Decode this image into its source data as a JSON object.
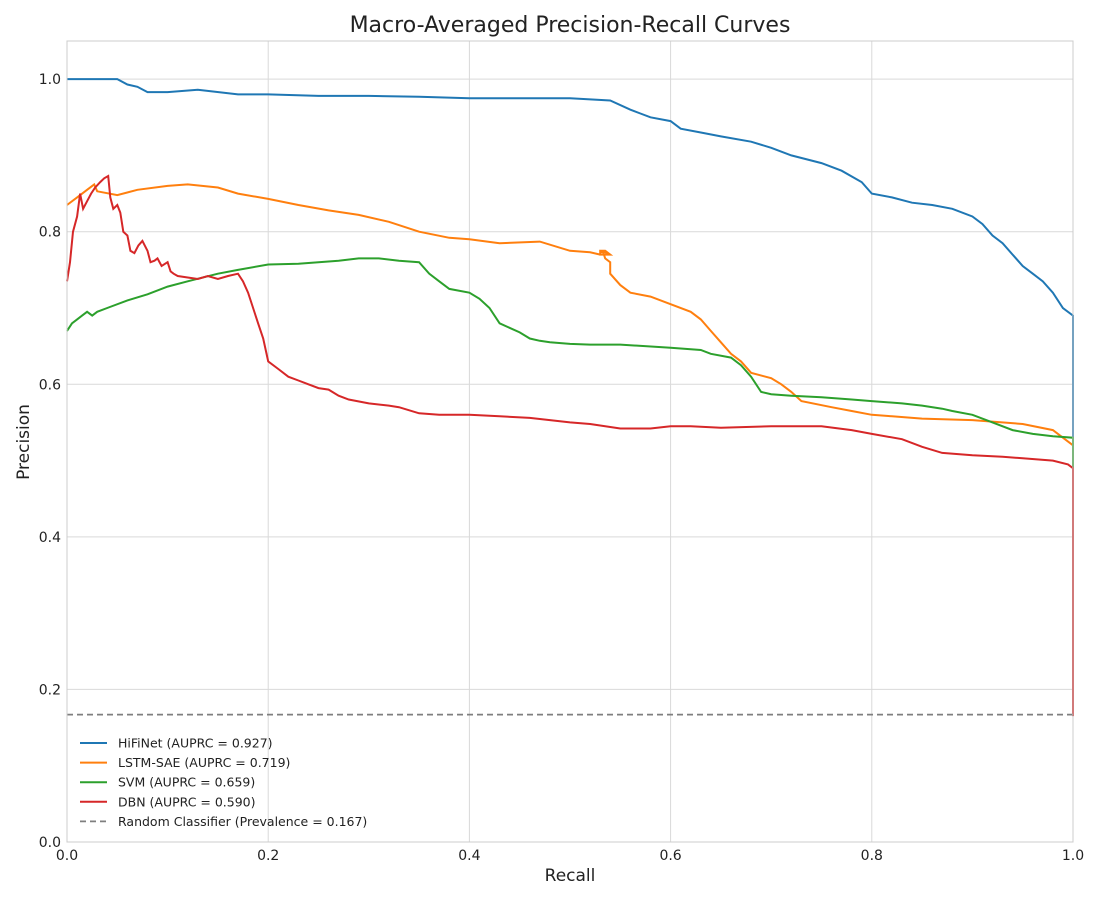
{
  "chart_data": {
    "type": "line",
    "title": "Macro-Averaged Precision-Recall Curves",
    "xlabel": "Recall",
    "ylabel": "Precision",
    "xlim": [
      0.0,
      1.0
    ],
    "ylim": [
      0.0,
      1.05
    ],
    "xticks": [
      0.0,
      0.2,
      0.4,
      0.6,
      0.8,
      1.0
    ],
    "xtick_labels": [
      "0.0",
      "0.2",
      "0.4",
      "0.6",
      "0.8",
      "1.0"
    ],
    "yticks": [
      0.0,
      0.2,
      0.4,
      0.6,
      0.8,
      1.0
    ],
    "ytick_labels": [
      "0.0",
      "0.2",
      "0.4",
      "0.6",
      "0.8",
      "1.0"
    ],
    "grid": true,
    "legend_position": "lower-left",
    "series": [
      {
        "name": "HiFiNet (AUPRC = 0.927)",
        "color": "#1f77b4",
        "style": "solid",
        "points": [
          [
            0,
            1.0
          ],
          [
            0.05,
            1.0
          ],
          [
            0.06,
            0.993
          ],
          [
            0.07,
            0.99
          ],
          [
            0.08,
            0.983
          ],
          [
            0.1,
            0.983
          ],
          [
            0.13,
            0.986
          ],
          [
            0.17,
            0.98
          ],
          [
            0.2,
            0.98
          ],
          [
            0.25,
            0.978
          ],
          [
            0.3,
            0.978
          ],
          [
            0.35,
            0.977
          ],
          [
            0.4,
            0.975
          ],
          [
            0.45,
            0.975
          ],
          [
            0.5,
            0.975
          ],
          [
            0.54,
            0.972
          ],
          [
            0.56,
            0.96
          ],
          [
            0.57,
            0.955
          ],
          [
            0.58,
            0.95
          ],
          [
            0.6,
            0.945
          ],
          [
            0.61,
            0.935
          ],
          [
            0.63,
            0.93
          ],
          [
            0.65,
            0.925
          ],
          [
            0.68,
            0.918
          ],
          [
            0.7,
            0.91
          ],
          [
            0.72,
            0.9
          ],
          [
            0.75,
            0.89
          ],
          [
            0.77,
            0.88
          ],
          [
            0.79,
            0.865
          ],
          [
            0.8,
            0.85
          ],
          [
            0.82,
            0.845
          ],
          [
            0.84,
            0.838
          ],
          [
            0.86,
            0.835
          ],
          [
            0.88,
            0.83
          ],
          [
            0.9,
            0.82
          ],
          [
            0.91,
            0.81
          ],
          [
            0.92,
            0.795
          ],
          [
            0.93,
            0.785
          ],
          [
            0.94,
            0.77
          ],
          [
            0.95,
            0.755
          ],
          [
            0.96,
            0.745
          ],
          [
            0.97,
            0.735
          ],
          [
            0.98,
            0.72
          ],
          [
            0.99,
            0.7
          ],
          [
            1.0,
            0.69
          ],
          [
            1.0,
            0.52
          ]
        ]
      },
      {
        "name": "LSTM-SAE (AUPRC = 0.719)",
        "color": "#ff7f0e",
        "style": "solid",
        "points": [
          [
            0,
            0.835
          ],
          [
            0.01,
            0.845
          ],
          [
            0.02,
            0.855
          ],
          [
            0.027,
            0.862
          ],
          [
            0.03,
            0.853
          ],
          [
            0.05,
            0.848
          ],
          [
            0.07,
            0.855
          ],
          [
            0.1,
            0.86
          ],
          [
            0.12,
            0.862
          ],
          [
            0.15,
            0.858
          ],
          [
            0.17,
            0.85
          ],
          [
            0.2,
            0.843
          ],
          [
            0.23,
            0.835
          ],
          [
            0.26,
            0.828
          ],
          [
            0.29,
            0.822
          ],
          [
            0.32,
            0.813
          ],
          [
            0.35,
            0.8
          ],
          [
            0.38,
            0.792
          ],
          [
            0.4,
            0.79
          ],
          [
            0.43,
            0.785
          ],
          [
            0.47,
            0.787
          ],
          [
            0.5,
            0.775
          ],
          [
            0.52,
            0.773
          ],
          [
            0.53,
            0.77
          ],
          [
            0.54,
            0.77
          ],
          [
            0.535,
            0.775
          ],
          [
            0.53,
            0.775
          ],
          [
            0.53,
            0.773
          ],
          [
            0.535,
            0.773
          ],
          [
            0.54,
            0.77
          ],
          [
            0.535,
            0.77
          ],
          [
            0.53,
            0.77
          ],
          [
            0.53,
            0.773
          ],
          [
            0.533,
            0.773
          ],
          [
            0.535,
            0.765
          ],
          [
            0.54,
            0.76
          ],
          [
            0.54,
            0.745
          ],
          [
            0.55,
            0.73
          ],
          [
            0.56,
            0.72
          ],
          [
            0.58,
            0.715
          ],
          [
            0.6,
            0.705
          ],
          [
            0.62,
            0.695
          ],
          [
            0.63,
            0.685
          ],
          [
            0.64,
            0.67
          ],
          [
            0.65,
            0.655
          ],
          [
            0.66,
            0.64
          ],
          [
            0.67,
            0.63
          ],
          [
            0.68,
            0.615
          ],
          [
            0.7,
            0.608
          ],
          [
            0.71,
            0.6
          ],
          [
            0.72,
            0.59
          ],
          [
            0.73,
            0.578
          ],
          [
            0.76,
            0.57
          ],
          [
            0.78,
            0.565
          ],
          [
            0.8,
            0.56
          ],
          [
            0.82,
            0.558
          ],
          [
            0.85,
            0.555
          ],
          [
            0.9,
            0.553
          ],
          [
            0.95,
            0.548
          ],
          [
            0.98,
            0.54
          ],
          [
            0.99,
            0.53
          ],
          [
            1.0,
            0.52
          ]
        ]
      },
      {
        "name": "SVM (AUPRC = 0.659)",
        "color": "#2ca02c",
        "style": "solid",
        "points": [
          [
            0,
            0.67
          ],
          [
            0.005,
            0.68
          ],
          [
            0.01,
            0.685
          ],
          [
            0.015,
            0.69
          ],
          [
            0.02,
            0.695
          ],
          [
            0.025,
            0.69
          ],
          [
            0.03,
            0.695
          ],
          [
            0.04,
            0.7
          ],
          [
            0.06,
            0.71
          ],
          [
            0.08,
            0.718
          ],
          [
            0.1,
            0.728
          ],
          [
            0.12,
            0.735
          ],
          [
            0.15,
            0.745
          ],
          [
            0.17,
            0.75
          ],
          [
            0.2,
            0.757
          ],
          [
            0.23,
            0.758
          ],
          [
            0.25,
            0.76
          ],
          [
            0.27,
            0.762
          ],
          [
            0.29,
            0.765
          ],
          [
            0.31,
            0.765
          ],
          [
            0.33,
            0.762
          ],
          [
            0.35,
            0.76
          ],
          [
            0.36,
            0.745
          ],
          [
            0.37,
            0.735
          ],
          [
            0.38,
            0.725
          ],
          [
            0.4,
            0.72
          ],
          [
            0.41,
            0.712
          ],
          [
            0.42,
            0.7
          ],
          [
            0.43,
            0.68
          ],
          [
            0.45,
            0.668
          ],
          [
            0.46,
            0.66
          ],
          [
            0.47,
            0.657
          ],
          [
            0.48,
            0.655
          ],
          [
            0.5,
            0.653
          ],
          [
            0.52,
            0.652
          ],
          [
            0.55,
            0.652
          ],
          [
            0.6,
            0.648
          ],
          [
            0.63,
            0.645
          ],
          [
            0.64,
            0.64
          ],
          [
            0.66,
            0.635
          ],
          [
            0.67,
            0.625
          ],
          [
            0.68,
            0.61
          ],
          [
            0.69,
            0.59
          ],
          [
            0.7,
            0.587
          ],
          [
            0.72,
            0.585
          ],
          [
            0.75,
            0.583
          ],
          [
            0.78,
            0.58
          ],
          [
            0.8,
            0.578
          ],
          [
            0.83,
            0.575
          ],
          [
            0.85,
            0.572
          ],
          [
            0.87,
            0.568
          ],
          [
            0.88,
            0.565
          ],
          [
            0.9,
            0.56
          ],
          [
            0.92,
            0.55
          ],
          [
            0.94,
            0.54
          ],
          [
            0.96,
            0.535
          ],
          [
            0.98,
            0.532
          ],
          [
            1.0,
            0.53
          ],
          [
            1.0,
            0.46
          ]
        ]
      },
      {
        "name": "DBN (AUPRC = 0.590)",
        "color": "#d62728",
        "style": "solid",
        "points": [
          [
            0,
            0.735
          ],
          [
            0.003,
            0.76
          ],
          [
            0.006,
            0.8
          ],
          [
            0.01,
            0.82
          ],
          [
            0.013,
            0.85
          ],
          [
            0.016,
            0.83
          ],
          [
            0.02,
            0.84
          ],
          [
            0.024,
            0.85
          ],
          [
            0.028,
            0.858
          ],
          [
            0.033,
            0.865
          ],
          [
            0.037,
            0.87
          ],
          [
            0.041,
            0.873
          ],
          [
            0.043,
            0.845
          ],
          [
            0.046,
            0.83
          ],
          [
            0.05,
            0.835
          ],
          [
            0.053,
            0.825
          ],
          [
            0.056,
            0.8
          ],
          [
            0.06,
            0.795
          ],
          [
            0.063,
            0.775
          ],
          [
            0.067,
            0.772
          ],
          [
            0.071,
            0.782
          ],
          [
            0.075,
            0.788
          ],
          [
            0.08,
            0.775
          ],
          [
            0.083,
            0.76
          ],
          [
            0.087,
            0.762
          ],
          [
            0.09,
            0.765
          ],
          [
            0.094,
            0.755
          ],
          [
            0.1,
            0.76
          ],
          [
            0.103,
            0.748
          ],
          [
            0.106,
            0.745
          ],
          [
            0.11,
            0.742
          ],
          [
            0.12,
            0.74
          ],
          [
            0.13,
            0.738
          ],
          [
            0.14,
            0.742
          ],
          [
            0.15,
            0.738
          ],
          [
            0.16,
            0.742
          ],
          [
            0.17,
            0.745
          ],
          [
            0.175,
            0.735
          ],
          [
            0.18,
            0.72
          ],
          [
            0.185,
            0.7
          ],
          [
            0.19,
            0.68
          ],
          [
            0.195,
            0.66
          ],
          [
            0.2,
            0.63
          ],
          [
            0.21,
            0.62
          ],
          [
            0.22,
            0.61
          ],
          [
            0.23,
            0.605
          ],
          [
            0.24,
            0.6
          ],
          [
            0.25,
            0.595
          ],
          [
            0.26,
            0.593
          ],
          [
            0.27,
            0.585
          ],
          [
            0.28,
            0.58
          ],
          [
            0.3,
            0.575
          ],
          [
            0.32,
            0.572
          ],
          [
            0.33,
            0.57
          ],
          [
            0.35,
            0.562
          ],
          [
            0.37,
            0.56
          ],
          [
            0.4,
            0.56
          ],
          [
            0.43,
            0.558
          ],
          [
            0.46,
            0.556
          ],
          [
            0.48,
            0.553
          ],
          [
            0.5,
            0.55
          ],
          [
            0.52,
            0.548
          ],
          [
            0.55,
            0.542
          ],
          [
            0.58,
            0.542
          ],
          [
            0.6,
            0.545
          ],
          [
            0.62,
            0.545
          ],
          [
            0.65,
            0.543
          ],
          [
            0.7,
            0.545
          ],
          [
            0.75,
            0.545
          ],
          [
            0.78,
            0.54
          ],
          [
            0.8,
            0.535
          ],
          [
            0.83,
            0.528
          ],
          [
            0.85,
            0.518
          ],
          [
            0.87,
            0.51
          ],
          [
            0.9,
            0.507
          ],
          [
            0.93,
            0.505
          ],
          [
            0.95,
            0.503
          ],
          [
            0.98,
            0.5
          ],
          [
            0.995,
            0.495
          ],
          [
            1.0,
            0.49
          ],
          [
            1.0,
            0.165
          ]
        ]
      },
      {
        "name": "Random Classifier (Prevalence = 0.167)",
        "color": "#7f7f7f",
        "style": "dashed",
        "points": [
          [
            0,
            0.167
          ],
          [
            1.0,
            0.167
          ]
        ]
      }
    ]
  }
}
